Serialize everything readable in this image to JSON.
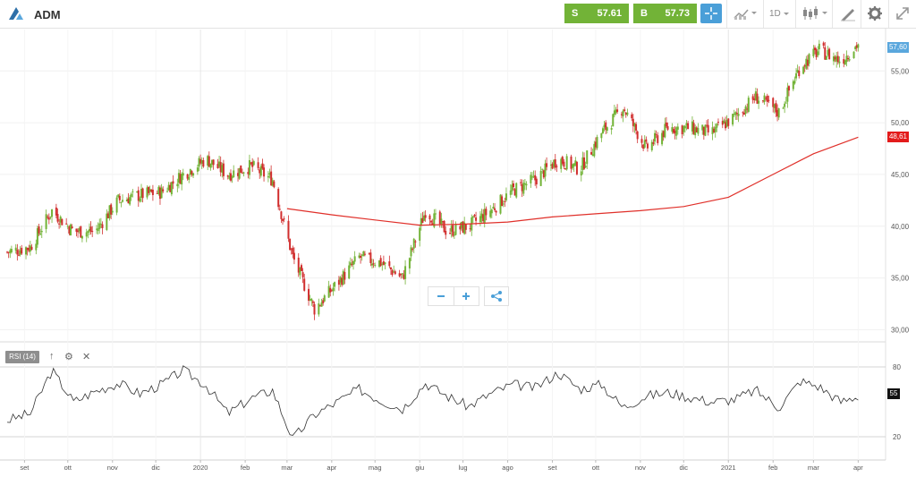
{
  "header": {
    "symbol": "ADM",
    "sell": {
      "label": "S",
      "price": "57.61"
    },
    "buy": {
      "label": "B",
      "price": "57.73"
    },
    "timeframe": "1D",
    "icons": [
      "logo-icon",
      "crosshair-icon",
      "line-chart-icon",
      "candlestick-icon",
      "draw-icon",
      "gear-icon",
      "expand-icon"
    ]
  },
  "indicator": {
    "label": "RSI (14)",
    "value_badge": "55"
  },
  "badges": {
    "last_price": "57,60",
    "moving_average": "48,61"
  },
  "colors": {
    "up": "#72b337",
    "down": "#d12e2e",
    "ma": "#e0302a",
    "rsi": "#333333",
    "accent": "#4a9fd8"
  },
  "chart_data": [
    {
      "type": "line",
      "title": "ADM",
      "series": [
        {
          "name": "Price",
          "x": [
            "2019-08-20",
            "2019-09-05",
            "2019-09-20",
            "2019-10-05",
            "2019-10-20",
            "2019-11-05",
            "2019-11-20",
            "2019-12-05",
            "2019-12-20",
            "2020-01-05",
            "2020-01-20",
            "2020-02-05",
            "2020-02-20",
            "2020-03-05",
            "2020-03-20",
            "2020-04-05",
            "2020-04-20",
            "2020-05-05",
            "2020-05-20",
            "2020-06-05",
            "2020-06-20",
            "2020-07-05",
            "2020-07-20",
            "2020-08-05",
            "2020-08-20",
            "2020-09-05",
            "2020-09-20",
            "2020-10-05",
            "2020-10-20",
            "2020-11-05",
            "2020-11-20",
            "2020-12-05",
            "2020-12-20",
            "2021-01-05",
            "2021-01-20",
            "2021-02-05",
            "2021-02-20",
            "2021-03-05",
            "2021-03-20",
            "2021-04-01"
          ],
          "values": [
            37.5,
            38.0,
            41.5,
            39.5,
            39.5,
            42.5,
            43.0,
            43.3,
            45.0,
            46.5,
            45.0,
            45.8,
            44.5,
            37.0,
            32.0,
            34.5,
            37.0,
            36.5,
            35.0,
            41.5,
            39.5,
            40.0,
            41.5,
            43.5,
            44.5,
            46.5,
            45.5,
            49.0,
            51.5,
            47.5,
            49.5,
            49.5,
            49.0,
            50.5,
            52.5,
            51.0,
            55.5,
            57.0,
            56.0,
            57.6
          ]
        },
        {
          "name": "MA",
          "x": [
            "2020-03-01",
            "2020-04-01",
            "2020-05-01",
            "2020-06-01",
            "2020-07-01",
            "2020-08-01",
            "2020-09-01",
            "2020-10-01",
            "2020-11-01",
            "2020-12-01",
            "2021-01-01",
            "2021-02-01",
            "2021-03-01",
            "2021-04-01"
          ],
          "values": [
            41.7,
            41.1,
            40.6,
            40.1,
            40.2,
            40.4,
            40.9,
            41.2,
            41.5,
            41.9,
            42.8,
            45.0,
            47.0,
            48.6
          ]
        }
      ],
      "y_ticks": [
        "55,00",
        "50,00",
        "45,00",
        "40,00",
        "35,00",
        "30,00"
      ],
      "ylim": [
        29,
        59
      ],
      "x_ticks": [
        "set",
        "ott",
        "nov",
        "dic",
        "2020",
        "feb",
        "mar",
        "apr",
        "mag",
        "giu",
        "lug",
        "ago",
        "set",
        "ott",
        "nov",
        "dic",
        "2021",
        "feb",
        "mar",
        "apr"
      ],
      "grid": true
    },
    {
      "type": "line",
      "title": "RSI (14)",
      "series": [
        {
          "name": "RSI (14)",
          "x": [
            "2019-08-20",
            "2019-09-05",
            "2019-09-20",
            "2019-10-05",
            "2019-10-20",
            "2019-11-05",
            "2019-11-20",
            "2019-12-05",
            "2019-12-20",
            "2020-01-05",
            "2020-01-20",
            "2020-02-05",
            "2020-02-20",
            "2020-03-05",
            "2020-03-20",
            "2020-04-05",
            "2020-04-20",
            "2020-05-05",
            "2020-05-20",
            "2020-06-05",
            "2020-06-20",
            "2020-07-05",
            "2020-07-20",
            "2020-08-05",
            "2020-08-20",
            "2020-09-05",
            "2020-09-20",
            "2020-10-05",
            "2020-10-20",
            "2020-11-05",
            "2020-11-20",
            "2020-12-05",
            "2020-12-20",
            "2021-01-05",
            "2021-01-20",
            "2021-02-05",
            "2021-02-20",
            "2021-03-05",
            "2021-03-20",
            "2021-04-01"
          ],
          "values": [
            34,
            40,
            77,
            50,
            59,
            66,
            57,
            65,
            77,
            64,
            40,
            53,
            60,
            18,
            39,
            50,
            61,
            51,
            44,
            66,
            55,
            46,
            57,
            65,
            62,
            75,
            61,
            65,
            45,
            55,
            58,
            54,
            50,
            52,
            60,
            45,
            68,
            63,
            50,
            55
          ]
        }
      ],
      "y_ticks": [
        "80",
        "20"
      ],
      "ylim": [
        0,
        100
      ],
      "grid": true
    }
  ]
}
